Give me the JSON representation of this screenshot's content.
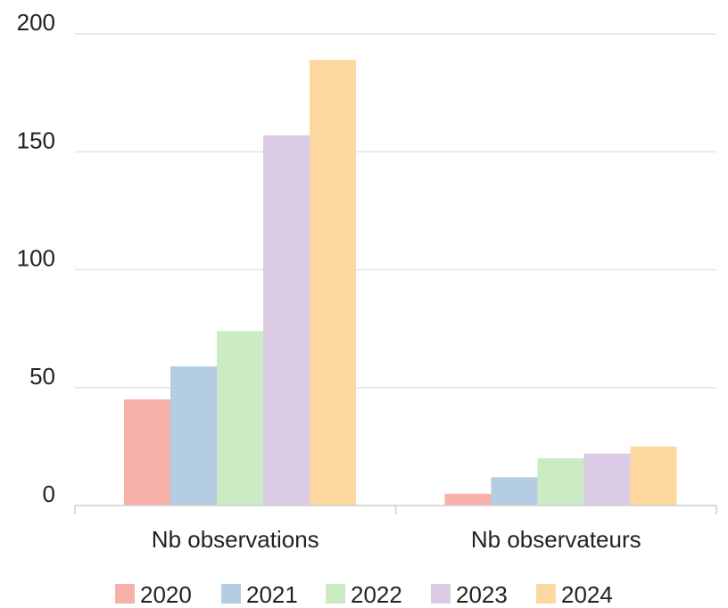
{
  "chart_data": {
    "type": "bar",
    "title": "",
    "xlabel": "",
    "ylabel": "",
    "categories": [
      "Nb observations",
      "Nb observateurs"
    ],
    "ylim": [
      0,
      200
    ],
    "yticks": [
      "0",
      "50",
      "100",
      "150",
      "200"
    ],
    "grid": true,
    "legend_position": "bottom",
    "series": [
      {
        "name": "2020",
        "color": "#f8b1aa",
        "values": [
          45,
          5
        ]
      },
      {
        "name": "2021",
        "color": "#b4cde3",
        "values": [
          59,
          12
        ]
      },
      {
        "name": "2022",
        "color": "#cbebc5",
        "values": [
          74,
          20
        ]
      },
      {
        "name": "2023",
        "color": "#dccbe5",
        "values": [
          157,
          22
        ]
      },
      {
        "name": "2024",
        "color": "#fdd8a0",
        "values": [
          189,
          25
        ]
      }
    ]
  }
}
